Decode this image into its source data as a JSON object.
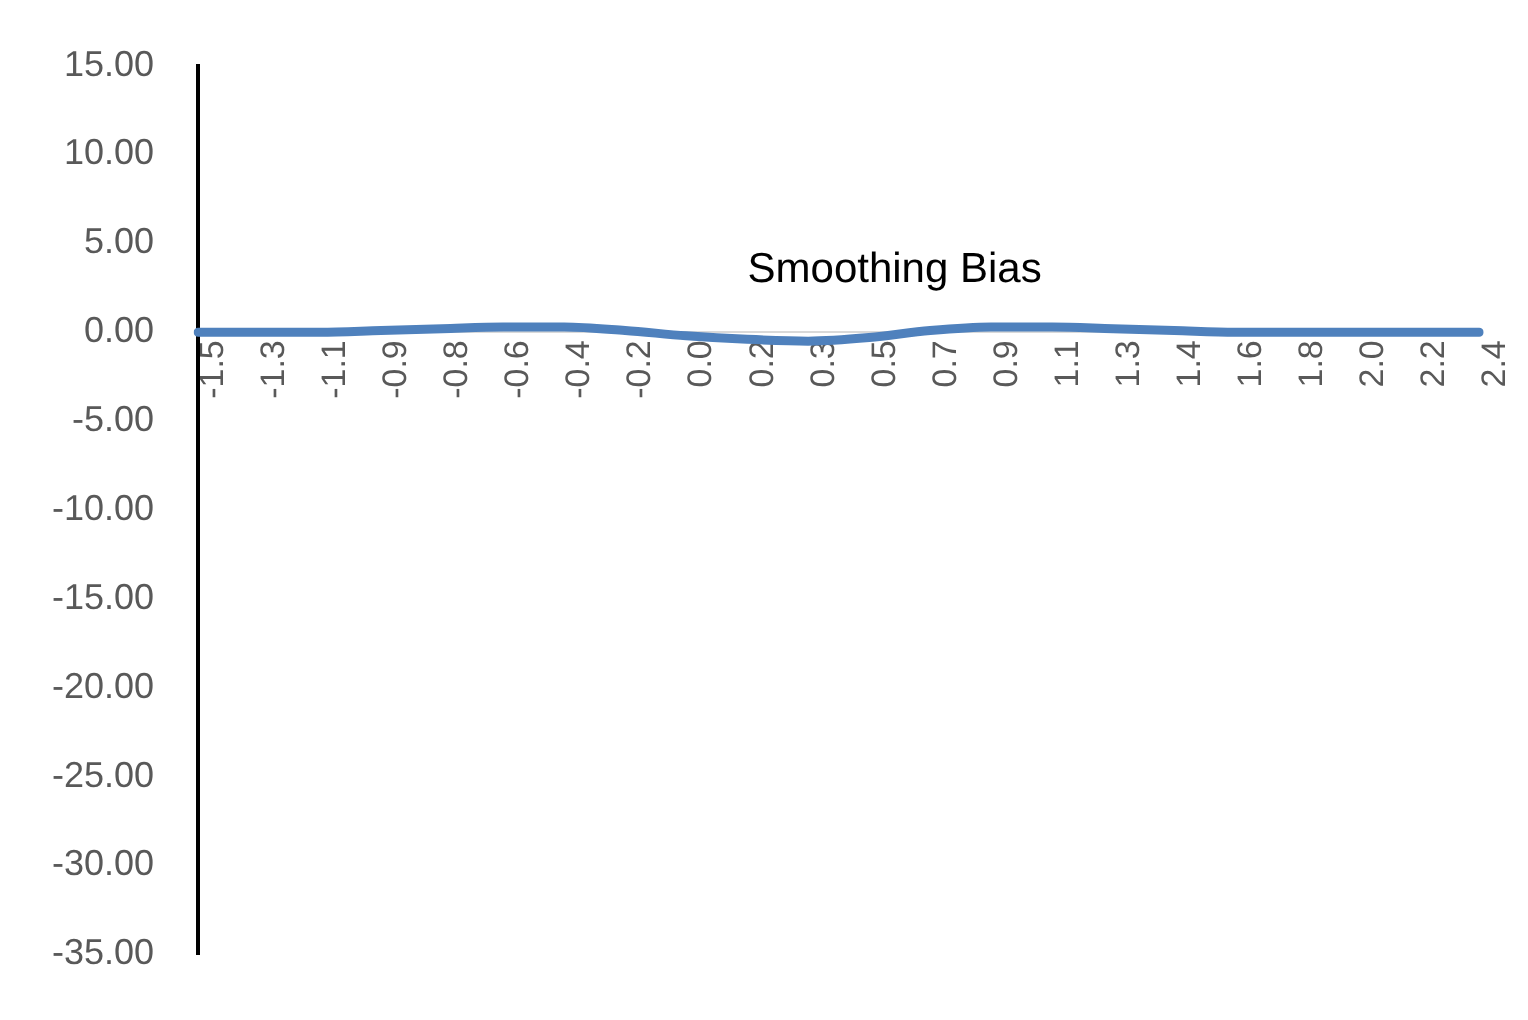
{
  "chart_data": {
    "type": "line",
    "title": "Smoothing Bias",
    "categories": [
      "-1.5",
      "-1.3",
      "-1.1",
      "-0.9",
      "-0.8",
      "-0.6",
      "-0.4",
      "-0.2",
      "0.0",
      "0.2",
      "0.3",
      "0.5",
      "0.7",
      "0.9",
      "1.1",
      "1.3",
      "1.4",
      "1.6",
      "1.8",
      "2.0",
      "2.2",
      "2.4"
    ],
    "series": [
      {
        "color": "#4f81bd",
        "values": [
          0,
          0,
          0,
          0.1,
          0.2,
          0.3,
          0.3,
          0.1,
          -0.2,
          -0.4,
          -0.5,
          -0.3,
          0.1,
          0.3,
          0.3,
          0.2,
          0.1,
          0,
          0,
          0,
          0,
          0
        ]
      }
    ],
    "ylim": [
      -35,
      15
    ],
    "yticks": [
      {
        "value": 15,
        "label": "15.00"
      },
      {
        "value": 10,
        "label": "10.00"
      },
      {
        "value": 5,
        "label": "5.00"
      },
      {
        "value": 0,
        "label": "0.00"
      },
      {
        "value": -5,
        "label": "-5.00"
      },
      {
        "value": -10,
        "label": "-10.00"
      },
      {
        "value": -15,
        "label": "-15.00"
      },
      {
        "value": -20,
        "label": "-20.00"
      },
      {
        "value": -25,
        "label": "-25.00"
      },
      {
        "value": -30,
        "label": "-30.00"
      },
      {
        "value": -35,
        "label": "-35.00"
      }
    ],
    "grid": false,
    "legend": false,
    "marker": "none",
    "line_style": "solid"
  }
}
